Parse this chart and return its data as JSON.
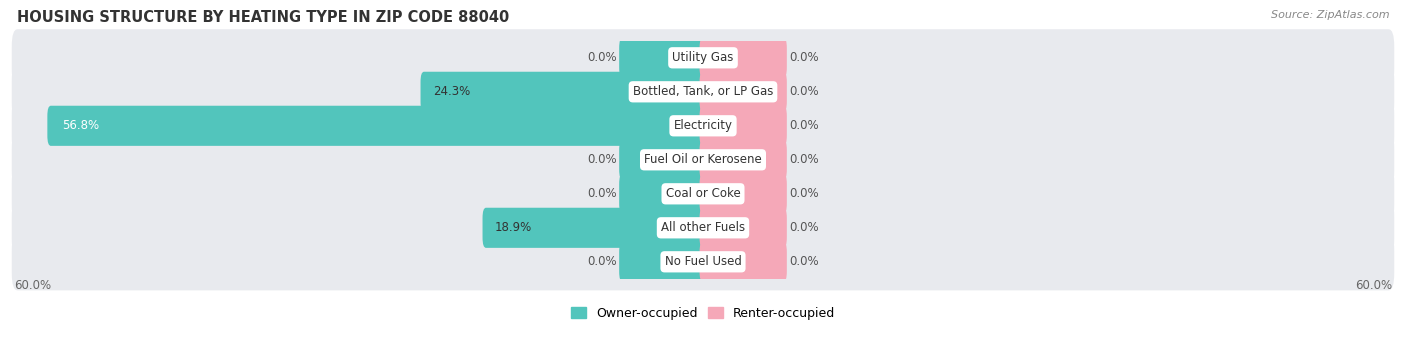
{
  "title": "HOUSING STRUCTURE BY HEATING TYPE IN ZIP CODE 88040",
  "source": "Source: ZipAtlas.com",
  "categories": [
    "Utility Gas",
    "Bottled, Tank, or LP Gas",
    "Electricity",
    "Fuel Oil or Kerosene",
    "Coal or Coke",
    "All other Fuels",
    "No Fuel Used"
  ],
  "owner_values": [
    0.0,
    24.3,
    56.8,
    0.0,
    0.0,
    18.9,
    0.0
  ],
  "renter_values": [
    0.0,
    0.0,
    0.0,
    0.0,
    0.0,
    0.0,
    0.0
  ],
  "owner_color": "#52C5BC",
  "renter_color": "#F5A8B8",
  "axis_max": 60.0,
  "bg_color": "#f8f8f8",
  "row_bg_color": "#e8eaee",
  "title_fontsize": 10.5,
  "source_fontsize": 8,
  "label_fontsize": 8.5,
  "tick_fontsize": 8.5,
  "legend_fontsize": 9,
  "category_fontsize": 8.5,
  "placeholder_owner": 7.0,
  "placeholder_renter": 7.0
}
